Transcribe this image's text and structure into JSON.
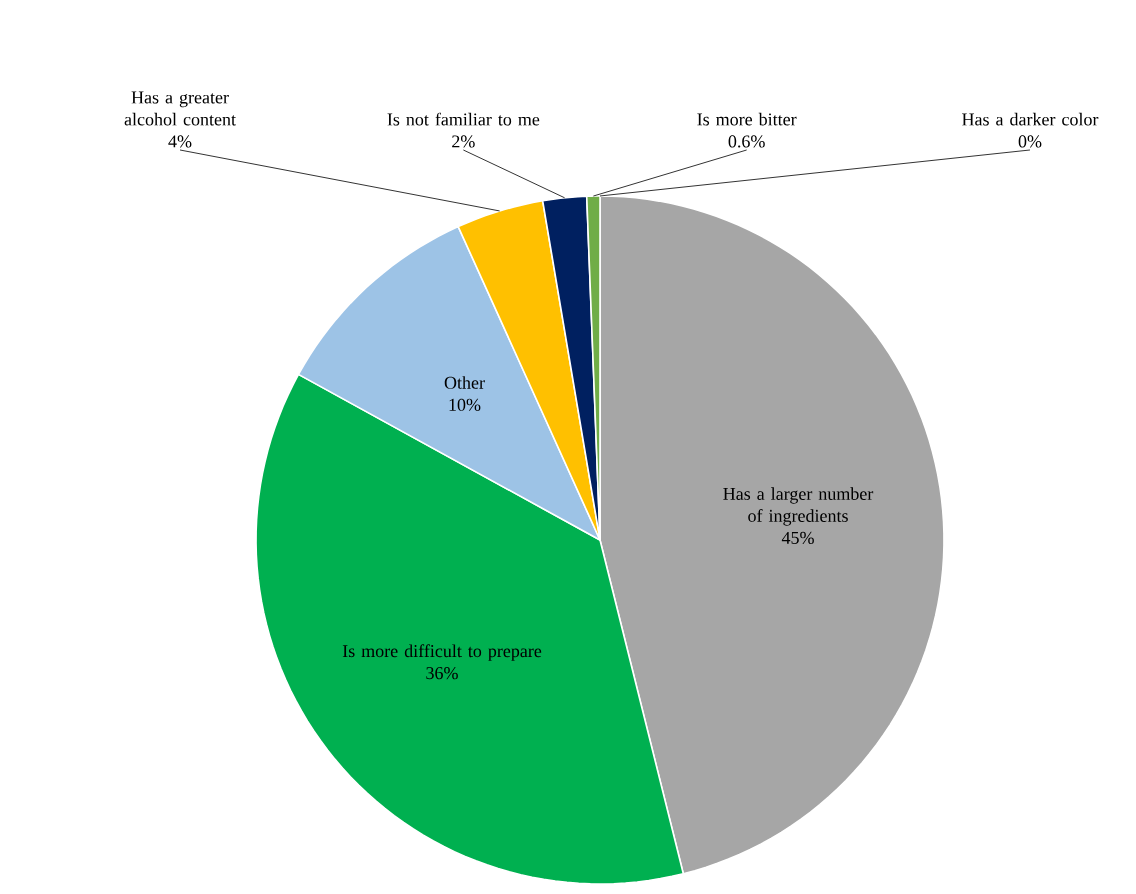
{
  "chart_data": {
    "type": "pie",
    "legend": false,
    "data_labels": true,
    "categories": [
      "Has a larger number of ingredients",
      "Is more difficult to prepare",
      "Other",
      "Has a greater alcohol content",
      "Is not familiar to me",
      "Is more bitter",
      "Has a darker color"
    ],
    "values": [
      45,
      36,
      10,
      4,
      2,
      0.6,
      0
    ],
    "value_labels": [
      "45%",
      "36%",
      "10%",
      "4%",
      "2%",
      "0.6%",
      "0%"
    ],
    "colors": [
      "#a6a6a6",
      "#00b050",
      "#9dc3e6",
      "#ffc000",
      "#002060",
      "#70ad47",
      "#7f7f7f"
    ]
  }
}
